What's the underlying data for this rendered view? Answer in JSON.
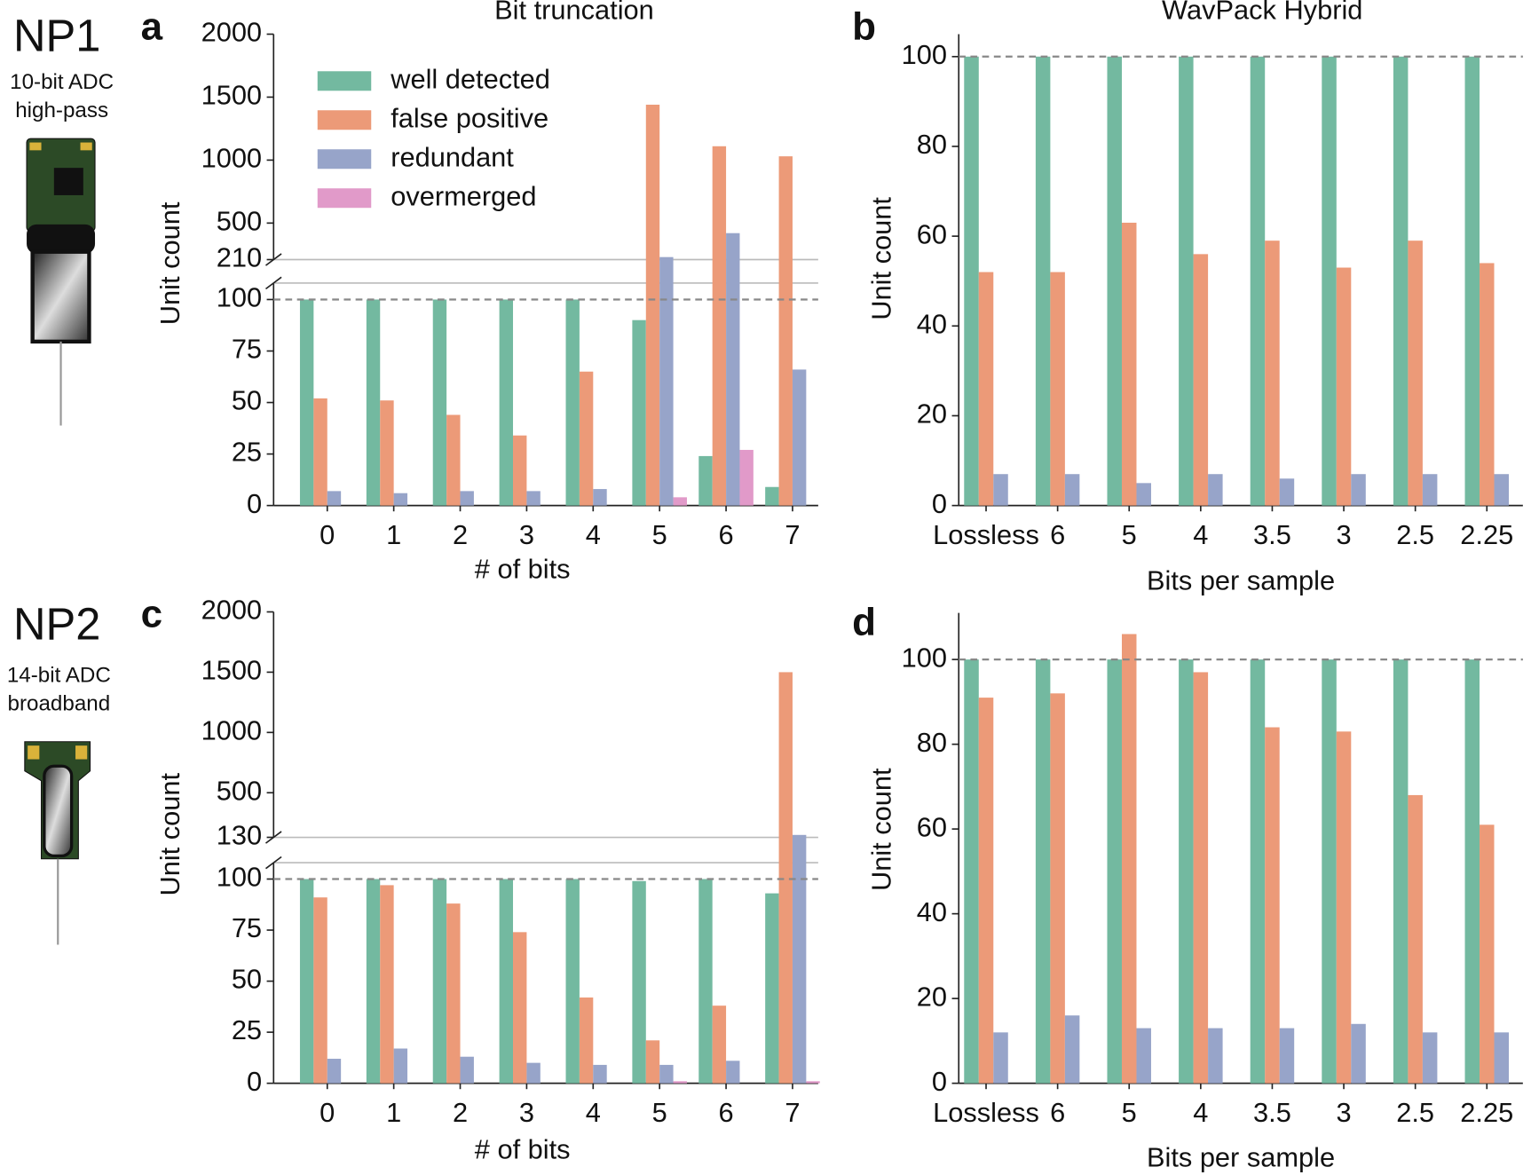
{
  "annotations": {
    "np1": "NP1",
    "np1_adc": "10-bit ADC",
    "np1_filter": "high-pass",
    "np2": "NP2",
    "np2_adc": "14-bit ADC",
    "np2_filter": "broadband"
  },
  "chart_data": [
    {
      "type": "bar",
      "panel_label": "a",
      "title": "Bit truncation",
      "x_label": "# of bits",
      "y_label": "Unit count",
      "categories": [
        "0",
        "1",
        "2",
        "3",
        "4",
        "5",
        "6",
        "7"
      ],
      "series": [
        {
          "name": "well detected",
          "color": "#73b9a0",
          "values": [
            100,
            100,
            100,
            100,
            100,
            90,
            24,
            9
          ]
        },
        {
          "name": "false positive",
          "color": "#ec9a78",
          "values": [
            52,
            51,
            44,
            34,
            65,
            1440,
            1110,
            1030
          ]
        },
        {
          "name": "redundant",
          "color": "#97a4c9",
          "values": [
            7,
            6,
            7,
            7,
            8,
            230,
            420,
            66
          ]
        },
        {
          "name": "overmerged",
          "color": "#e19ac9",
          "values": [
            0,
            0,
            0,
            0,
            0,
            4,
            27,
            0
          ]
        }
      ],
      "ylim": [
        0,
        2000
      ],
      "ybreak": [
        108,
        210
      ],
      "yticks": [
        0,
        25,
        50,
        75,
        100,
        210,
        500,
        1000,
        1500,
        2000
      ],
      "hline": 100,
      "legend": "upper left"
    },
    {
      "type": "bar",
      "panel_label": "b",
      "title": "WavPack Hybrid",
      "x_label": "Bits per sample",
      "y_label": "Unit count",
      "categories": [
        "Lossless",
        "6",
        "5",
        "4",
        "3.5",
        "3",
        "2.5",
        "2.25"
      ],
      "series": [
        {
          "name": "well detected",
          "color": "#73b9a0",
          "values": [
            100,
            100,
            100,
            100,
            100,
            100,
            100,
            100
          ]
        },
        {
          "name": "false positive",
          "color": "#ec9a78",
          "values": [
            52,
            52,
            63,
            56,
            59,
            53,
            59,
            54
          ]
        },
        {
          "name": "redundant",
          "color": "#97a4c9",
          "values": [
            7,
            7,
            5,
            7,
            6,
            7,
            7,
            7
          ]
        }
      ],
      "ylim": [
        0,
        105
      ],
      "yticks": [
        0,
        20,
        40,
        60,
        80,
        100
      ],
      "hline": 100
    },
    {
      "type": "bar",
      "panel_label": "c",
      "x_label": "# of bits",
      "y_label": "Unit count",
      "categories": [
        "0",
        "1",
        "2",
        "3",
        "4",
        "5",
        "6",
        "7"
      ],
      "series": [
        {
          "name": "well detected",
          "color": "#73b9a0",
          "values": [
            100,
            100,
            100,
            100,
            100,
            99,
            100,
            93
          ]
        },
        {
          "name": "false positive",
          "color": "#ec9a78",
          "values": [
            91,
            97,
            88,
            74,
            42,
            21,
            38,
            1500
          ]
        },
        {
          "name": "redundant",
          "color": "#97a4c9",
          "values": [
            12,
            17,
            13,
            10,
            9,
            9,
            11,
            150
          ]
        },
        {
          "name": "overmerged",
          "color": "#e19ac9",
          "values": [
            0,
            0,
            0,
            0,
            0,
            1,
            0,
            1
          ]
        }
      ],
      "ylim": [
        0,
        2000
      ],
      "ybreak": [
        108,
        130
      ],
      "yticks": [
        0,
        25,
        50,
        75,
        100,
        130,
        500,
        1000,
        1500,
        2000
      ],
      "hline": 100
    },
    {
      "type": "bar",
      "panel_label": "d",
      "x_label": "Bits per sample",
      "y_label": "Unit count",
      "categories": [
        "Lossless",
        "6",
        "5",
        "4",
        "3.5",
        "3",
        "2.5",
        "2.25"
      ],
      "series": [
        {
          "name": "well detected",
          "color": "#73b9a0",
          "values": [
            100,
            100,
            100,
            100,
            100,
            100,
            100,
            100
          ]
        },
        {
          "name": "false positive",
          "color": "#ec9a78",
          "values": [
            91,
            92,
            106,
            97,
            84,
            83,
            68,
            61
          ]
        },
        {
          "name": "redundant",
          "color": "#97a4c9",
          "values": [
            12,
            16,
            13,
            13,
            13,
            14,
            12,
            12
          ]
        }
      ],
      "ylim": [
        0,
        111
      ],
      "yticks": [
        0,
        20,
        40,
        60,
        80,
        100
      ],
      "hline": 100
    }
  ]
}
